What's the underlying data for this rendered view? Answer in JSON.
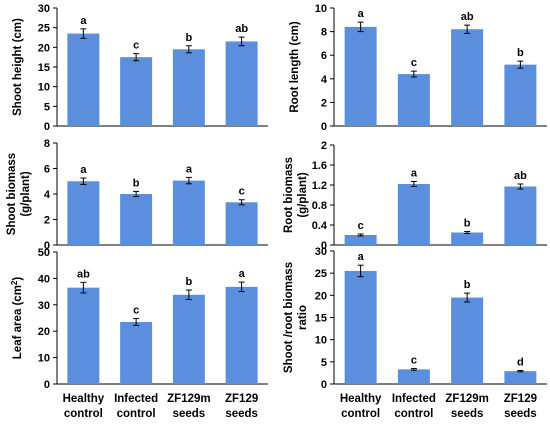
{
  "chart_data": [
    {
      "type": "bar",
      "ylabel": "Shoot height (cm)",
      "ylabel_sup": "",
      "ylabel_tail": "",
      "categories": [
        "Healthy control",
        "Infected control",
        "ZF129m seeds",
        "ZF129 seeds"
      ],
      "values": [
        23.5,
        17.5,
        19.5,
        21.5
      ],
      "errors": [
        1.2,
        0.9,
        0.9,
        1.1
      ],
      "significance": [
        "a",
        "c",
        "b",
        "ab"
      ],
      "ylim": [
        0,
        30
      ],
      "yticks": [
        0,
        5,
        10,
        15,
        20,
        25,
        30
      ],
      "yticks_labels": [
        "0",
        "5",
        "10",
        "15",
        "20",
        "25",
        "30"
      ],
      "bar_color": "#5b8fde"
    },
    {
      "type": "bar",
      "ylabel": "Root length (cm)",
      "ylabel_sup": "",
      "ylabel_tail": "",
      "categories": [
        "Healthy control",
        "Infected control",
        "ZF129m seeds",
        "ZF129 seeds"
      ],
      "values": [
        8.4,
        4.4,
        8.2,
        5.2
      ],
      "errors": [
        0.4,
        0.25,
        0.35,
        0.3
      ],
      "significance": [
        "a",
        "c",
        "ab",
        "b"
      ],
      "ylim": [
        0,
        10
      ],
      "yticks": [
        0,
        2,
        4,
        6,
        8,
        10
      ],
      "yticks_labels": [
        "0",
        "2",
        "4",
        "6",
        "8",
        "10"
      ],
      "bar_color": "#5b8fde"
    },
    {
      "type": "bar",
      "ylabel": "Shoot biomass",
      "ylabel2": "(g/plant)",
      "ylabel_sup": "",
      "ylabel_tail": "",
      "categories": [
        "Healthy control",
        "Infected control",
        "ZF129m seeds",
        "ZF129 seeds"
      ],
      "values": [
        5.0,
        4.0,
        5.05,
        3.35
      ],
      "errors": [
        0.25,
        0.2,
        0.25,
        0.2
      ],
      "significance": [
        "a",
        "b",
        "a",
        "c"
      ],
      "ylim": [
        0,
        8
      ],
      "yticks": [
        0,
        2,
        4,
        6,
        8
      ],
      "yticks_labels": [
        "0",
        "2",
        "4",
        "6",
        "8"
      ],
      "bar_color": "#5b8fde"
    },
    {
      "type": "bar",
      "ylabel": "Root biomass",
      "ylabel2": "(g/plant)",
      "ylabel_sup": "",
      "ylabel_tail": "",
      "categories": [
        "Healthy control",
        "Infected control",
        "ZF129m seeds",
        "ZF129 seeds"
      ],
      "values": [
        0.2,
        1.22,
        0.25,
        1.17
      ],
      "errors": [
        0.02,
        0.05,
        0.02,
        0.05
      ],
      "significance": [
        "c",
        "a",
        "b",
        "ab"
      ],
      "ylim": [
        0,
        2
      ],
      "yticks": [
        0,
        0.4,
        0.8,
        1.2,
        1.6,
        2
      ],
      "yticks_labels": [
        "0",
        "0.4",
        "0.8",
        "1.2",
        "1.6",
        "2"
      ],
      "bar_color": "#5b8fde"
    },
    {
      "type": "bar",
      "ylabel": "Leaf area (cm",
      "ylabel_sup": "2",
      "ylabel_tail": ")",
      "categories": [
        "Healthy control",
        "Infected control",
        "ZF129m seeds",
        "ZF129 seeds"
      ],
      "values": [
        36.5,
        23.5,
        33.8,
        36.8
      ],
      "errors": [
        2.0,
        1.3,
        1.8,
        1.8
      ],
      "significance": [
        "ab",
        "c",
        "b",
        "a"
      ],
      "ylim": [
        0,
        50
      ],
      "yticks": [
        0,
        10,
        20,
        30,
        40,
        50
      ],
      "yticks_labels": [
        "0",
        "10",
        "20",
        "30",
        "40",
        "50"
      ],
      "bar_color": "#5b8fde"
    },
    {
      "type": "bar",
      "ylabel": "Shoot /root biomass",
      "ylabel2": "ratio",
      "ylabel_sup": "",
      "ylabel_tail": "",
      "categories": [
        "Healthy control",
        "Infected control",
        "ZF129m seeds",
        "ZF129 seeds"
      ],
      "values": [
        25.5,
        3.3,
        19.5,
        2.9
      ],
      "errors": [
        1.3,
        0.2,
        1.0,
        0.15
      ],
      "significance": [
        "a",
        "c",
        "b",
        "d"
      ],
      "ylim": [
        0,
        30
      ],
      "yticks": [
        0,
        5,
        10,
        15,
        20,
        25,
        30
      ],
      "yticks_labels": [
        "0",
        "5",
        "10",
        "15",
        "20",
        "25",
        "30"
      ],
      "bar_color": "#5b8fde"
    }
  ],
  "categories_lines": [
    [
      "Healthy",
      "control"
    ],
    [
      "Infected",
      "control"
    ],
    [
      "ZF129m",
      "seeds"
    ],
    [
      "ZF129",
      "seeds"
    ]
  ]
}
